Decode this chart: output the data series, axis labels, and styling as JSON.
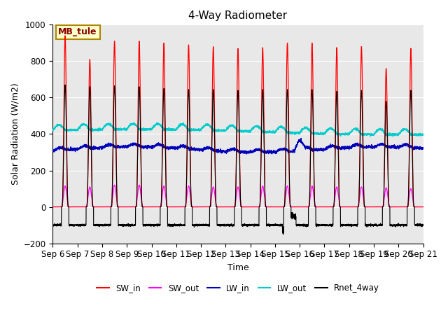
{
  "title": "4-Way Radiometer",
  "xlabel": "Time",
  "ylabel": "Solar Radiation (W/m2)",
  "ylim": [
    -200,
    1000
  ],
  "days": 15,
  "xtick_labels": [
    "Sep 6",
    "Sep 7",
    "Sep 8",
    "Sep 9",
    "Sep 10",
    "Sep 11",
    "Sep 12",
    "Sep 13",
    "Sep 14",
    "Sep 15",
    "Sep 16",
    "Sep 17",
    "Sep 18",
    "Sep 19",
    "Sep 20",
    "Sep 21"
  ],
  "colors": {
    "SW_in": "#ff0000",
    "SW_out": "#ff00ff",
    "LW_in": "#0000bb",
    "LW_out": "#00cccc",
    "Rnet_4way": "#000000"
  },
  "legend_labels": [
    "SW_in",
    "SW_out",
    "LW_in",
    "LW_out",
    "Rnet_4way"
  ],
  "annotation_text": "MB_tule",
  "annotation_facecolor": "#ffffcc",
  "annotation_edgecolor": "#aa8800",
  "annotation_textcolor": "#880000",
  "background_color": "#e8e8e8",
  "figure_background": "#ffffff",
  "grid_color": "#ffffff",
  "title_fontsize": 11,
  "yticks": [
    -200,
    0,
    200,
    400,
    600,
    800,
    1000
  ]
}
